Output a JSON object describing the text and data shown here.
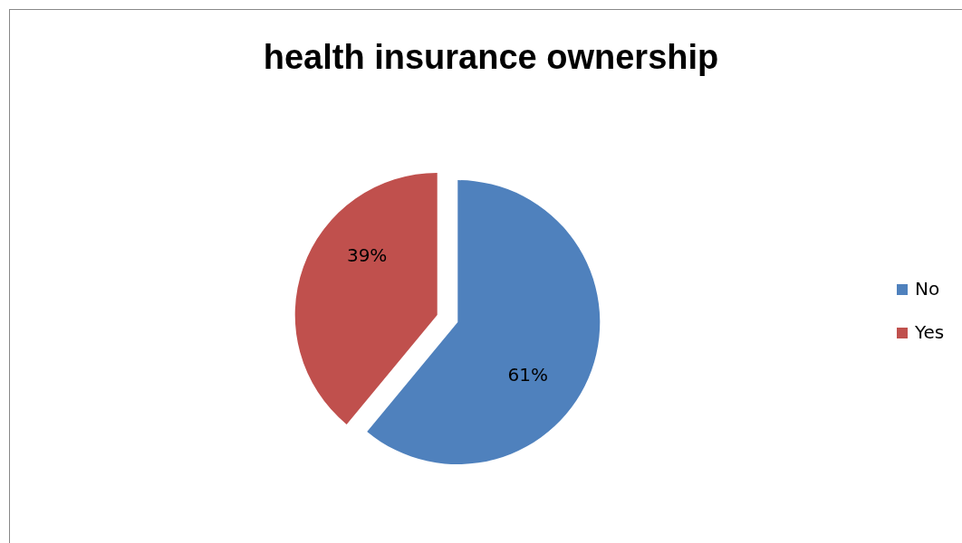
{
  "chart_data": {
    "type": "pie",
    "title": "health insurance ownership",
    "categories": [
      "No",
      "Yes"
    ],
    "values": [
      61,
      39
    ],
    "colors": [
      "#4f81bd",
      "#c0504d"
    ],
    "value_labels": [
      "61%",
      "39%"
    ],
    "legend": "right"
  }
}
